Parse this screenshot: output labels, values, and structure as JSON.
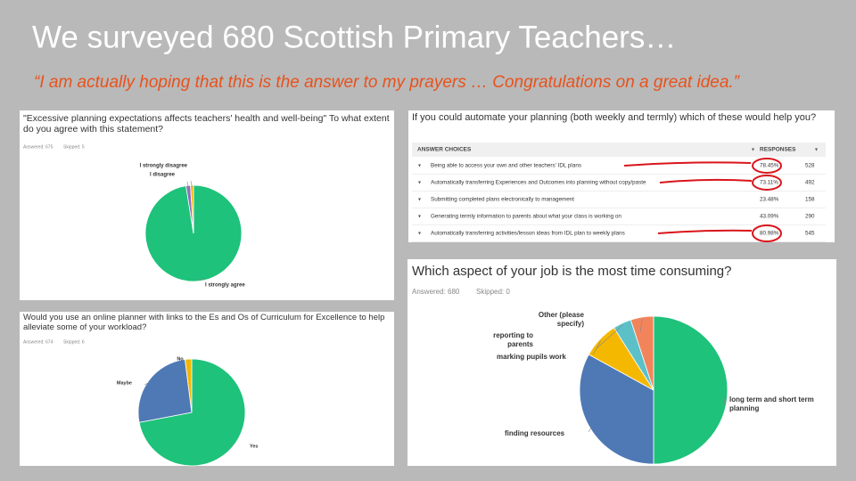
{
  "title": "We surveyed 680 Scottish Primary Teachers…",
  "quote": "“I am actually hoping that this is the answer to my prayers … Congratulations on a great idea.”",
  "chart_data": [
    {
      "type": "pie",
      "title": "\"Excessive planning expectations affects teachers' health and well-being\" To what extent do you agree with this statement?",
      "stats": [
        "Answered: 675",
        "Skipped: 5"
      ],
      "categories": [
        "I strongly agree",
        "I disagree",
        "I strongly disagree"
      ],
      "values": [
        97.5,
        1.5,
        1
      ],
      "colors": [
        "#1ec27a",
        "#8e6fb8",
        "#f2b705"
      ]
    },
    {
      "type": "pie",
      "title": "Would you use an online planner with links to the Es and Os of Curriculum for Excellence to help alleviate some of your workload?",
      "stats": [
        "Answered: 674",
        "Skipped: 6"
      ],
      "categories": [
        "Yes",
        "Maybe",
        "No"
      ],
      "values": [
        72,
        26,
        2
      ],
      "colors": [
        "#1ec27a",
        "#4f79b5",
        "#f2b705"
      ]
    },
    {
      "type": "pie",
      "title": "Which aspect of your job is the most time consuming?",
      "stats": [
        "Answered: 680",
        "Skipped: 0"
      ],
      "categories": [
        "long term and short term planning",
        "finding resources",
        "marking pupils work",
        "reporting to parents",
        "Other (please specify)"
      ],
      "values": [
        50,
        33,
        8,
        4,
        5
      ],
      "colors": [
        "#1ec27a",
        "#4f79b5",
        "#f5b800",
        "#5cc0c9",
        "#f2845c"
      ]
    }
  ],
  "table": {
    "title": "If you could automate your planning (both weekly and termly) which of these would help you?",
    "header": [
      "ANSWER CHOICES",
      "RESPONSES"
    ],
    "rows": [
      [
        "Being able to access your own and other teachers' IDL plans",
        "78.45%",
        "528"
      ],
      [
        "Automatically transferring Experiences and Outcomes into planning without copy/paste",
        "73.11%",
        "492"
      ],
      [
        "Submitting completed plans electronically to management",
        "23.48%",
        "158"
      ],
      [
        "Generating termly information to parents about what your class is working on",
        "43.09%",
        "290"
      ],
      [
        "Automatically transferring activities/lesson ideas from IDL plan to weekly plans",
        "80.98%",
        "545"
      ]
    ]
  }
}
